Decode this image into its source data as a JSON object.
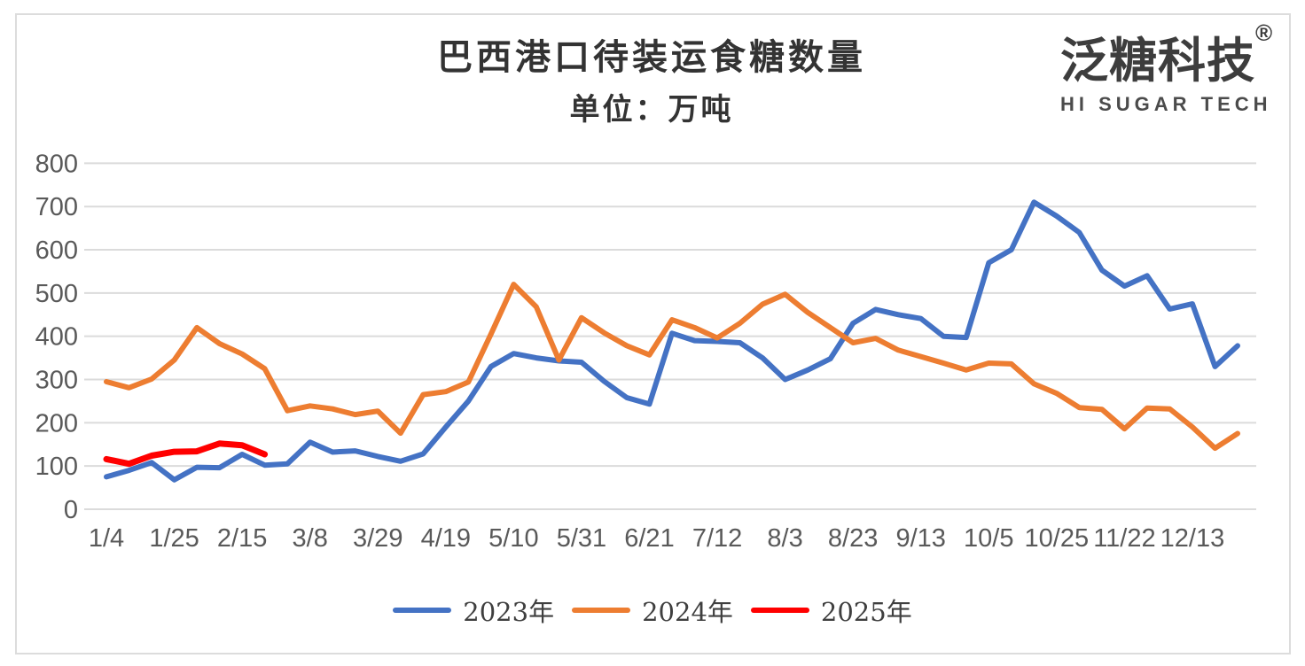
{
  "title": "巴西港口待装运食糖数量",
  "subtitle": "单位：万吨",
  "logo": {
    "cn": "泛糖科技",
    "reg": "®",
    "en": "HI SUGAR TECH"
  },
  "colors": {
    "axis_text": "#595959",
    "gridline": "#dbdbdb",
    "frame_border": "#dcdcdc",
    "series_2023": "#4472C4",
    "series_2024": "#ED7D31",
    "series_2025": "#FF0000"
  },
  "chart_data": {
    "type": "line",
    "title": "巴西港口待装运食糖数量",
    "subtitle": "单位：万吨",
    "ylabel": "万吨",
    "ylim": [
      0,
      800
    ],
    "y_ticks": [
      0,
      100,
      200,
      300,
      400,
      500,
      600,
      700,
      800
    ],
    "grid": "horizontal",
    "legend_position": "bottom",
    "x_tick_every": 3,
    "x_tick_labels": [
      "1/4",
      "1/25",
      "2/15",
      "3/8",
      "3/29",
      "4/19",
      "5/10",
      "5/31",
      "6/21",
      "7/12",
      "8/3",
      "8/23",
      "9/13",
      "10/5",
      "10/25",
      "11/22",
      "12/13"
    ],
    "series": [
      {
        "name": "2023年",
        "color": "#4472C4",
        "values": [
          75,
          90,
          108,
          68,
          97,
          96,
          127,
          102,
          105,
          155,
          132,
          135,
          122,
          111,
          128,
          190,
          250,
          330,
          360,
          350,
          343,
          340,
          296,
          258,
          243,
          407,
          390,
          388,
          385,
          350,
          300,
          322,
          348,
          430,
          462,
          450,
          441,
          400,
          397,
          570,
          600,
          710,
          678,
          640,
          553,
          516,
          540,
          463,
          475,
          330,
          378
        ]
      },
      {
        "name": "2024年",
        "color": "#ED7D31",
        "values": [
          295,
          281,
          301,
          345,
          420,
          383,
          359,
          325,
          228,
          239,
          232,
          219,
          227,
          176,
          265,
          272,
          294,
          405,
          520,
          468,
          345,
          443,
          408,
          378,
          357,
          438,
          420,
          396,
          430,
          474,
          497,
          455,
          420,
          385,
          395,
          368,
          353,
          338,
          322,
          338,
          336,
          290,
          268,
          235,
          231,
          186,
          234,
          232,
          190,
          141,
          175
        ]
      },
      {
        "name": "2025年",
        "color": "#FF0000",
        "values": [
          116,
          105,
          124,
          133,
          134,
          152,
          148,
          127
        ]
      }
    ]
  }
}
